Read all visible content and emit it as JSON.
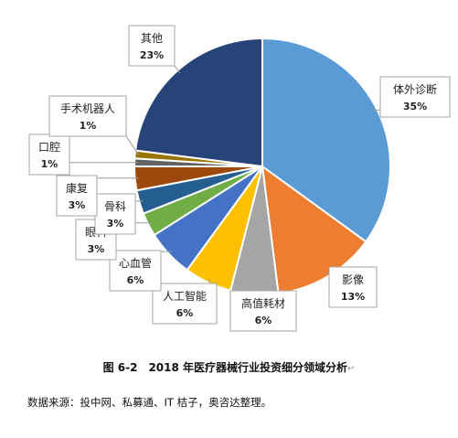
{
  "chart_data": {
    "type": "pie",
    "title": "",
    "slices": [
      {
        "label": "体外诊断",
        "value": 35,
        "display": "35%",
        "color": "#5b9bd5"
      },
      {
        "label": "影像",
        "value": 13,
        "display": "13%",
        "color": "#ed7d31"
      },
      {
        "label": "高值耗材",
        "value": 6,
        "display": "6%",
        "color": "#a5a5a5"
      },
      {
        "label": "人工智能",
        "value": 6,
        "display": "6%",
        "color": "#ffc000"
      },
      {
        "label": "心血管",
        "value": 6,
        "display": "6%",
        "color": "#4472c4"
      },
      {
        "label": "眼科",
        "value": 3,
        "display": "3%",
        "color": "#70ad47"
      },
      {
        "label": "骨科",
        "value": 3,
        "display": "3%",
        "color": "#255e91"
      },
      {
        "label": "康复",
        "value": 3,
        "display": "3%",
        "color": "#9e480e"
      },
      {
        "label": "口腔",
        "value": 1,
        "display": "1%",
        "color": "#636363"
      },
      {
        "label": "手术机器人",
        "value": 1,
        "display": "1%",
        "color": "#997300"
      },
      {
        "label": "其他",
        "value": 23,
        "display": "23%",
        "color": "#264478"
      }
    ]
  },
  "caption": {
    "number": "图 6-2",
    "text": "2018 年医疗器械行业投资细分领域分析",
    "mark": "↵"
  },
  "source": "数据来源：投中网、私募通、IT 桔子，奥咨达整理。"
}
